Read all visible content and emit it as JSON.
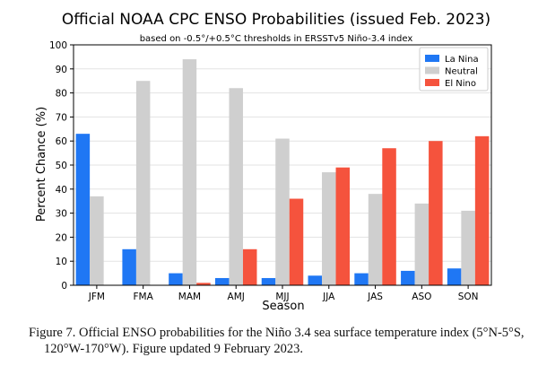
{
  "chart_data": {
    "type": "bar",
    "title": "Official NOAA CPC ENSO Probabilities (issued Feb. 2023)",
    "subtitle": "based on -0.5°/+0.5°C thresholds in ERSSTv5 Niño-3.4 index",
    "xlabel": "Season",
    "ylabel": "Percent Chance (%)",
    "ylim": [
      0,
      100
    ],
    "yticks": [
      0,
      10,
      20,
      30,
      40,
      50,
      60,
      70,
      80,
      90,
      100
    ],
    "grid": true,
    "legend_position": "top-right",
    "categories": [
      "JFM",
      "FMA",
      "MAM",
      "AMJ",
      "MJJ",
      "JJA",
      "JAS",
      "ASO",
      "SON"
    ],
    "series": [
      {
        "name": "La Nina",
        "color": "#1f77f4",
        "values": [
          63,
          15,
          5,
          3,
          3,
          4,
          5,
          6,
          7
        ]
      },
      {
        "name": "Neutral",
        "color": "#cfcfcf",
        "values": [
          37,
          85,
          94,
          82,
          61,
          47,
          38,
          34,
          31
        ]
      },
      {
        "name": "El Nino",
        "color": "#f5533d",
        "values": [
          0,
          0,
          1,
          15,
          36,
          49,
          57,
          60,
          62
        ]
      }
    ]
  },
  "caption": {
    "line1": "Figure 7. Official ENSO probabilities for the Niño 3.4 sea surface temperature index (5°N-5°S,",
    "line2": "120°W-170°W). Figure updated 9 February 2023."
  }
}
